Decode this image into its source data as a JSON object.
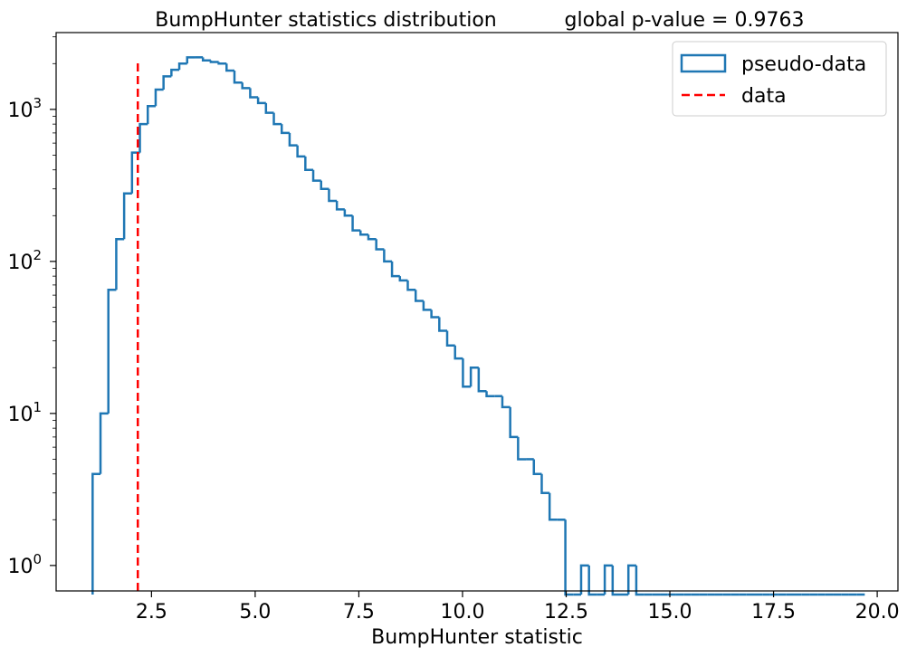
{
  "chart_data": {
    "type": "histogram",
    "title": "BumpHunter statistics distribution",
    "title_right": "global p-value = 0.9763",
    "xlabel": "BumpHunter statistic",
    "ylabel": "",
    "xlim": [
      0.2,
      20.5
    ],
    "ylim": [
      0.68,
      3200
    ],
    "y_scale": "log",
    "x_ticks": [
      2.5,
      5.0,
      7.5,
      10.0,
      12.5,
      15.0,
      17.5,
      20.0
    ],
    "x_tick_labels": [
      "2.5",
      "5.0",
      "7.5",
      "10.0",
      "12.5",
      "15.0",
      "17.5",
      "20.0"
    ],
    "y_ticks": [
      1,
      10,
      100,
      1000
    ],
    "y_tick_base": "10",
    "y_tick_exponents": [
      "0",
      "1",
      "2",
      "3"
    ],
    "grid": false,
    "legend_position": "top-right",
    "legend": [
      {
        "label": "pseudo-data",
        "style": "box",
        "color": "#1f77b4"
      },
      {
        "label": "data",
        "style": "dashed",
        "color": "#ff0000"
      }
    ],
    "colors": {
      "histogram": "#1f77b4",
      "data_line": "#ff0000"
    },
    "data_value": 2.17,
    "data_line_top": 2100,
    "bin_edges": [
      1.08,
      1.27,
      1.46,
      1.65,
      1.84,
      2.03,
      2.22,
      2.41,
      2.6,
      2.79,
      2.98,
      3.17,
      3.36,
      3.55,
      3.74,
      3.93,
      4.12,
      4.31,
      4.5,
      4.69,
      4.88,
      5.07,
      5.26,
      5.45,
      5.64,
      5.83,
      6.02,
      6.21,
      6.4,
      6.59,
      6.78,
      6.97,
      7.16,
      7.35,
      7.54,
      7.73,
      7.92,
      8.11,
      8.3,
      8.49,
      8.68,
      8.87,
      9.06,
      9.25,
      9.44,
      9.63,
      9.82,
      10.01,
      10.2,
      10.39,
      10.58,
      10.77,
      10.96,
      11.15,
      11.34,
      11.53,
      11.72,
      11.91,
      12.1,
      12.29,
      12.48,
      12.67,
      12.86,
      13.05,
      13.24,
      13.43,
      13.62,
      13.81,
      14.0,
      14.19,
      14.38,
      14.57,
      14.76,
      14.95,
      15.14,
      15.33,
      15.52,
      15.71,
      15.9,
      16.09,
      16.28,
      16.47,
      16.66,
      16.85,
      17.04,
      17.23,
      17.42,
      17.61,
      17.8,
      17.99,
      18.18,
      18.37,
      18.56,
      18.75,
      18.94,
      19.13,
      19.32,
      19.51,
      19.7
    ],
    "counts": [
      4,
      10,
      65,
      140,
      280,
      520,
      800,
      1050,
      1350,
      1650,
      1820,
      2000,
      2200,
      2200,
      2100,
      2050,
      2000,
      1800,
      1500,
      1380,
      1200,
      1100,
      950,
      800,
      700,
      580,
      490,
      400,
      340,
      300,
      250,
      220,
      200,
      160,
      150,
      140,
      120,
      100,
      80,
      75,
      65,
      55,
      48,
      43,
      35,
      28,
      23,
      15,
      20,
      14,
      13,
      13,
      11,
      7,
      5,
      5,
      4,
      3,
      2,
      2,
      0,
      0,
      1,
      0,
      0,
      1,
      0,
      0,
      1,
      0,
      0,
      0,
      0,
      0,
      0,
      0,
      0,
      0,
      0,
      0,
      0,
      0,
      0,
      0,
      0,
      0,
      0,
      0,
      0,
      0,
      0,
      0,
      0,
      0,
      0,
      0,
      0,
      0
    ]
  }
}
